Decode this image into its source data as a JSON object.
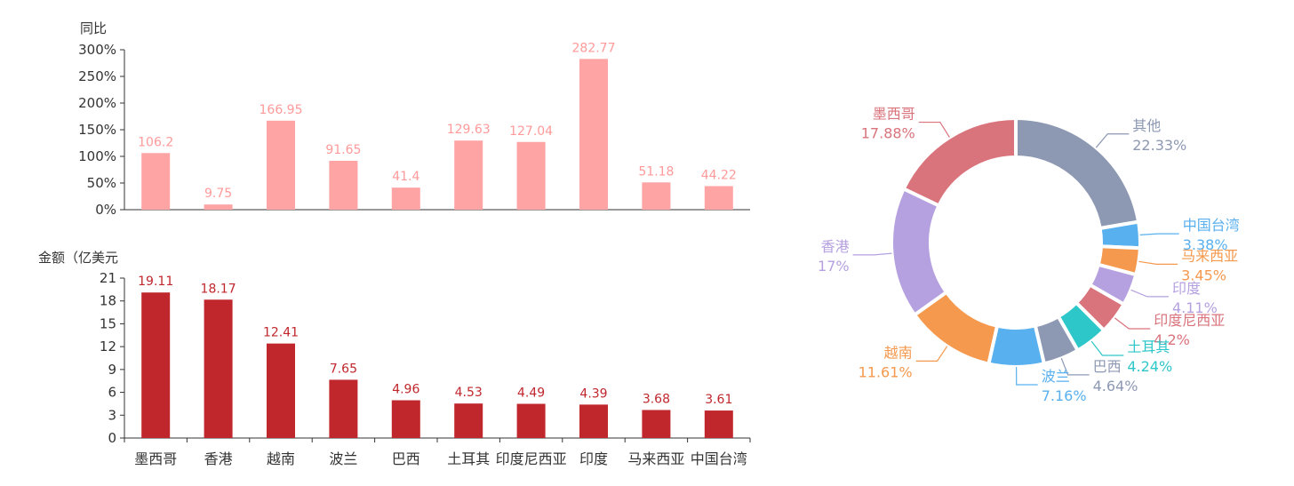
{
  "chart_data": [
    {
      "type": "bar",
      "ylabel": "同比",
      "categories": [
        "墨西哥",
        "香港",
        "越南",
        "波兰",
        "巴西",
        "土耳其",
        "印度尼西亚",
        "印度",
        "马来西亚",
        "中国台湾"
      ],
      "values": [
        106.2,
        9.75,
        166.95,
        91.65,
        41.4,
        129.63,
        127.04,
        282.77,
        51.18,
        44.22
      ],
      "value_labels": [
        "106.2",
        "9.75",
        "166.95",
        "91.65",
        "41.4",
        "129.63",
        "127.04",
        "282.77",
        "51.18",
        "44.22"
      ],
      "yticks": [
        "0%",
        "50%",
        "100%",
        "150%",
        "200%",
        "250%",
        "300%"
      ],
      "ylim": [
        0,
        300
      ],
      "color": "#ffa4a4"
    },
    {
      "type": "bar",
      "ylabel": "金额（亿美元",
      "categories": [
        "墨西哥",
        "香港",
        "越南",
        "波兰",
        "巴西",
        "土耳其",
        "印度尼西亚",
        "印度",
        "马来西亚",
        "中国台湾"
      ],
      "values": [
        19.11,
        18.17,
        12.41,
        7.65,
        4.96,
        4.53,
        4.49,
        4.39,
        3.68,
        3.61
      ],
      "value_labels": [
        "19.11",
        "18.17",
        "12.41",
        "7.65",
        "4.96",
        "4.53",
        "4.49",
        "4.39",
        "3.68",
        "3.61"
      ],
      "yticks": [
        "0",
        "3",
        "6",
        "9",
        "12",
        "15",
        "18",
        "21"
      ],
      "ylim": [
        0,
        21
      ],
      "color": "#c0272d"
    },
    {
      "type": "pie",
      "donut": true,
      "slices": [
        {
          "name": "其他",
          "value": 22.33,
          "label": "22.33%",
          "color": "#8d98b3"
        },
        {
          "name": "中国台湾",
          "value": 3.38,
          "label": "3.38%",
          "color": "#58b0ef"
        },
        {
          "name": "马来西亚",
          "value": 3.45,
          "label": "3.45%",
          "color": "#f5994e"
        },
        {
          "name": "印度",
          "value": 4.11,
          "label": "4.11%",
          "color": "#b5a0e0"
        },
        {
          "name": "印度尼西亚",
          "value": 4.2,
          "label": "4.2%",
          "color": "#d9737c"
        },
        {
          "name": "土耳其",
          "value": 4.24,
          "label": "4.24%",
          "color": "#2ec7c9"
        },
        {
          "name": "巴西",
          "value": 4.64,
          "label": "4.64%",
          "color": "#8d98b3"
        },
        {
          "name": "波兰",
          "value": 7.16,
          "label": "7.16%",
          "color": "#58b0ef"
        },
        {
          "name": "越南",
          "value": 11.61,
          "label": "11.61%",
          "color": "#f5994e"
        },
        {
          "name": "香港",
          "value": 17,
          "label": "17%",
          "color": "#b5a0e0"
        },
        {
          "name": "墨西哥",
          "value": 17.88,
          "label": "17.88%",
          "color": "#d9737c"
        }
      ]
    }
  ]
}
